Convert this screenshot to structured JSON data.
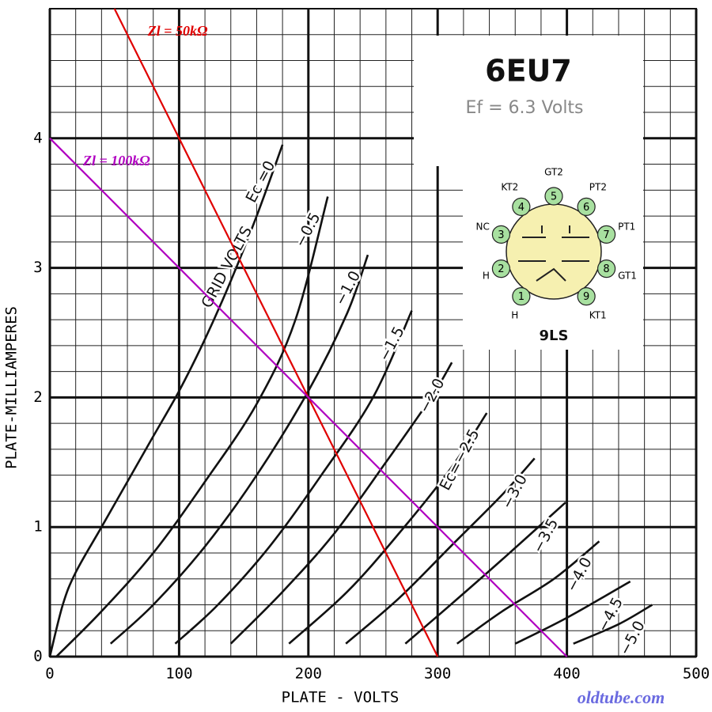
{
  "chart_data": {
    "type": "line",
    "xlabel": "PLATE - VOLTS",
    "ylabel": "PLATE-MILLIAMPERES",
    "xlim": [
      0,
      500
    ],
    "ylim": [
      0,
      5
    ],
    "xticks": [
      0,
      100,
      200,
      300,
      400,
      500
    ],
    "yticks": [
      0,
      1,
      2,
      3,
      4
    ],
    "grid": true,
    "minor_grid_divisions": 5,
    "annotation": "GRID VOLTS",
    "series": [
      {
        "name": "Ec =0",
        "color": "#111111",
        "x": [
          0,
          10,
          20,
          40,
          60,
          80,
          100,
          120,
          140,
          160,
          180
        ],
        "values": [
          0,
          0.4,
          0.65,
          1.0,
          1.35,
          1.7,
          2.05,
          2.45,
          2.9,
          3.4,
          3.95
        ]
      },
      {
        "name": "−0.5",
        "color": "#111111",
        "x": [
          5,
          40,
          80,
          120,
          160,
          190,
          215
        ],
        "values": [
          0,
          0.35,
          0.8,
          1.35,
          1.95,
          2.6,
          3.55
        ]
      },
      {
        "name": "−1.0",
        "color": "#111111",
        "x": [
          47,
          80,
          120,
          160,
          200,
          230,
          246
        ],
        "values": [
          0.1,
          0.4,
          0.85,
          1.4,
          2.05,
          2.65,
          3.1
        ]
      },
      {
        "name": "−1.5",
        "color": "#111111",
        "x": [
          97,
          130,
          170,
          210,
          250,
          280
        ],
        "values": [
          0.1,
          0.4,
          0.85,
          1.4,
          2.0,
          2.67
        ]
      },
      {
        "name": "−2.0",
        "color": "#111111",
        "x": [
          140,
          180,
          220,
          260,
          295,
          311
        ],
        "values": [
          0.1,
          0.5,
          0.95,
          1.5,
          2.0,
          2.27
        ]
      },
      {
        "name": "Ec=−2.5",
        "color": "#111111",
        "x": [
          185,
          230,
          270,
          310,
          338
        ],
        "values": [
          0.1,
          0.5,
          0.95,
          1.45,
          1.88
        ]
      },
      {
        "name": "−3.0",
        "color": "#111111",
        "x": [
          229,
          270,
          310,
          350,
          375
        ],
        "values": [
          0.1,
          0.45,
          0.85,
          1.25,
          1.53
        ]
      },
      {
        "name": "−3.5",
        "color": "#111111",
        "x": [
          275,
          310,
          350,
          399
        ],
        "values": [
          0.1,
          0.4,
          0.75,
          1.19
        ]
      },
      {
        "name": "−4.0",
        "color": "#111111",
        "x": [
          315,
          350,
          390,
          425
        ],
        "values": [
          0.1,
          0.35,
          0.6,
          0.89
        ]
      },
      {
        "name": "−4.5",
        "color": "#111111",
        "x": [
          360,
          400,
          449
        ],
        "values": [
          0.1,
          0.3,
          0.58
        ]
      },
      {
        "name": "−5.0",
        "color": "#111111",
        "x": [
          405,
          440,
          466
        ],
        "values": [
          0.1,
          0.25,
          0.4
        ]
      }
    ],
    "load_lines": [
      {
        "name": "Zl = 50kΩ",
        "color": "#e00000",
        "x": [
          50,
          300
        ],
        "values": [
          5,
          0
        ]
      },
      {
        "name": "Zl = 100kΩ",
        "color": "#b000c0",
        "x": [
          0,
          400
        ],
        "values": [
          4,
          0
        ]
      }
    ]
  },
  "tube_info": {
    "title": "6EU7",
    "heater": "Ef = 6.3 Volts",
    "base": {
      "label": "9LS",
      "pins": [
        {
          "number": "1",
          "label": "H"
        },
        {
          "number": "2",
          "label": "H"
        },
        {
          "number": "3",
          "label": "NC"
        },
        {
          "number": "4",
          "label": "KT2"
        },
        {
          "number": "5",
          "label": "GT2"
        },
        {
          "number": "6",
          "label": "PT2"
        },
        {
          "number": "7",
          "label": "PT1"
        },
        {
          "number": "8",
          "label": "GT1"
        },
        {
          "number": "9",
          "label": "KT1"
        }
      ]
    }
  },
  "watermark": "oldtube.com"
}
